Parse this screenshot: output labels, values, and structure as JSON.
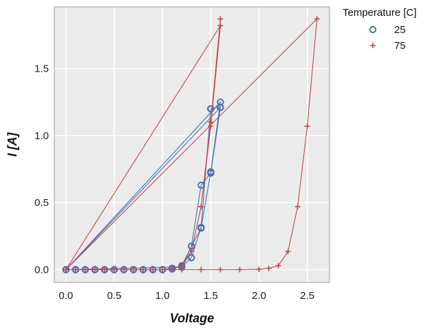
{
  "chart_data": {
    "type": "scatter",
    "xlabel": "Voltage",
    "ylabel": "I [A]",
    "xlim": [
      -0.12,
      2.73
    ],
    "ylim": [
      -0.095,
      1.96
    ],
    "xticks": [
      0.0,
      0.5,
      1.0,
      1.5,
      2.0,
      2.5
    ],
    "xtick_labels": [
      "0.0",
      "0.5",
      "1.0",
      "1.5",
      "2.0",
      "2.5"
    ],
    "yticks": [
      0.0,
      0.5,
      1.0,
      1.5
    ],
    "ytick_labels": [
      "0.0",
      "0.5",
      "1.0",
      "1.5"
    ],
    "grid": true,
    "legend": {
      "title": "Temperature [C]",
      "placement": "outside-top-right"
    },
    "series": [
      {
        "name": "25",
        "marker": "circle-open",
        "color": "#4a6fad",
        "x": [
          0.0,
          0.1,
          0.2,
          0.3,
          0.4,
          0.5,
          0.6,
          0.7,
          0.8,
          0.9,
          1.0,
          1.1,
          1.2,
          1.3,
          1.4,
          1.5,
          1.6,
          0.0,
          0.1,
          0.2,
          0.3,
          0.4,
          0.5,
          0.6,
          0.7,
          0.8,
          0.9,
          1.0,
          1.1,
          1.2,
          1.3,
          1.4,
          1.5,
          1.6,
          0.0,
          0.1,
          0.2,
          0.3,
          0.4,
          0.5,
          0.6,
          0.7,
          0.8,
          0.9,
          1.0,
          1.1,
          1.2,
          1.3,
          1.4,
          1.5,
          1.6,
          0.0,
          0.1,
          0.2,
          0.3,
          0.4,
          0.5,
          0.6,
          0.7,
          0.8,
          0.9,
          1.0,
          1.1,
          1.2,
          1.3,
          1.4,
          1.5,
          1.6
        ],
        "y": [
          0.0,
          0.0,
          0.0,
          0.0,
          0.0,
          0.0,
          0.0,
          0.0,
          0.0,
          0.0,
          0.0,
          0.005,
          0.03,
          0.175,
          0.63,
          0.72,
          1.21,
          0.0,
          0.0,
          0.0,
          0.0,
          0.0,
          0.0,
          0.0,
          0.0,
          0.0,
          0.0,
          0.0,
          0.01,
          0.02,
          0.09,
          0.315,
          1.2,
          1.21,
          0.0,
          0.0,
          0.0,
          0.0,
          0.0,
          0.0,
          0.0,
          0.0,
          0.0,
          0.0,
          0.0,
          0.01,
          0.02,
          0.175,
          0.31,
          0.73,
          1.25,
          0.0,
          0.0,
          0.0,
          0.0,
          0.0,
          0.0,
          0.0,
          0.0,
          0.0,
          0.0,
          0.0,
          0.01,
          0.02,
          0.09,
          0.315,
          1.2,
          1.21
        ]
      },
      {
        "name": "75",
        "marker": "plus",
        "color": "#c0474a",
        "x": [
          0.0,
          0.1,
          0.2,
          0.3,
          0.4,
          0.5,
          0.6,
          0.7,
          0.8,
          0.9,
          1.0,
          1.1,
          1.2,
          1.3,
          1.4,
          1.5,
          1.6,
          0.0,
          1.2,
          1.4,
          1.6,
          1.8,
          2.0,
          2.1,
          2.2,
          2.3,
          2.4,
          2.5,
          2.6,
          0.0,
          1.2,
          1.3,
          1.4,
          1.5,
          1.6
        ],
        "y": [
          0.0,
          0.0,
          0.0,
          0.0,
          0.0,
          0.0,
          0.0,
          0.0,
          0.0,
          0.0,
          0.0,
          0.005,
          0.03,
          0.14,
          0.47,
          1.07,
          1.82,
          0.0,
          0.0,
          0.0,
          0.0,
          0.0,
          0.003,
          0.01,
          0.03,
          0.135,
          0.47,
          1.07,
          1.87,
          0.0,
          0.02,
          0.14,
          0.47,
          1.1,
          1.87
        ]
      }
    ]
  }
}
